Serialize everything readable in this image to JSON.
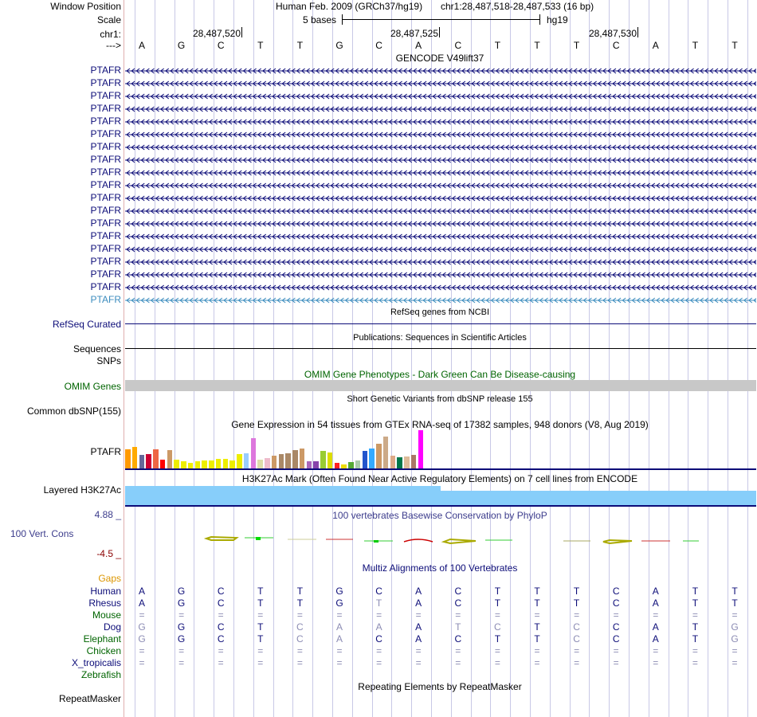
{
  "header": {
    "assembly": "Human Feb. 2009 (GRCh37/hg19)",
    "position": "chr1:28,487,518-28,487,533 (16 bp)",
    "scale_text": "5 bases",
    "scale_db": "hg19",
    "chr_label": "chr1:",
    "ticks": [
      "28,487,520",
      "28,487,525",
      "28,487,530"
    ],
    "strand_arrow": "--->"
  },
  "labels": {
    "window_position": "Window Position",
    "scale": "Scale",
    "refseq": "RefSeq Curated",
    "sequences": "Sequences",
    "snps": "SNPs",
    "omim": "OMIM Genes",
    "dbsnp": "Common dbSNP(155)",
    "gtex_gene": "PTAFR",
    "h3k27ac": "Layered H3K27Ac",
    "cons": "100 Vert. Cons",
    "cons_max": "4.88 _",
    "cons_min": "-4.5 _",
    "gaps": "Gaps",
    "repeatmasker": "RepeatMasker"
  },
  "titles": {
    "gencode": "GENCODE V49lift37",
    "refseq": "RefSeq genes from NCBI",
    "publications": "Publications: Sequences in Scientific Articles",
    "omim": "OMIM Gene Phenotypes - Dark Green Can Be Disease-causing",
    "dbsnp": "Short Genetic Variants from dbSNP release 155",
    "gtex": "Gene Expression in 54 tissues from GTEx RNA-seq of 17382 samples, 948 donors (V8, Aug 2019)",
    "h3k27ac": "H3K27Ac Mark (Often Found Near Active Regulatory Elements) on 7 cell lines from ENCODE",
    "cons": "100 vertebrates Basewise Conservation by PhyloP",
    "multiz": "Multiz Alignments of 100 Vertebrates",
    "repeatmasker": "Repeating Elements by RepeatMasker"
  },
  "bases": [
    "A",
    "G",
    "C",
    "T",
    "T",
    "G",
    "C",
    "A",
    "C",
    "T",
    "T",
    "T",
    "C",
    "A",
    "T",
    "T"
  ],
  "gencode_gene": "PTAFR",
  "gencode_count": 19,
  "colors": {
    "gene": "#0c0c78",
    "gene_last": "#3c8cbe",
    "omim_label": "#006400",
    "cons_label": "#3c3c8c",
    "gaps_label": "#dc9600",
    "h3k27ac_bar": "#87cefa",
    "omim_bar": "#c8c8c8"
  },
  "gtex_values": [
    24,
    27,
    17,
    18,
    24,
    11,
    23,
    11,
    9,
    7,
    9,
    10,
    10,
    12,
    12,
    10,
    18,
    19,
    38,
    11,
    13,
    16,
    18,
    19,
    23,
    25,
    9,
    9,
    22,
    20,
    7,
    5,
    8,
    10,
    22,
    25,
    31,
    40,
    16,
    14,
    15,
    17,
    48
  ],
  "gtex_colors": [
    "#ff9900",
    "#ffaa00",
    "#666699",
    "#cc0033",
    "#ee6644",
    "#ff0000",
    "#cc9966",
    "#eeee00",
    "#eeee00",
    "#eeee00",
    "#eeee00",
    "#eeee00",
    "#eeee00",
    "#eeee00",
    "#eeee00",
    "#eeee00",
    "#eeee00",
    "#99ccff",
    "#dd77dd",
    "#ddddaa",
    "#eebbcc",
    "#cc9966",
    "#aa8866",
    "#aa8866",
    "#aa8866",
    "#cc9966",
    "#aa66bb",
    "#8844aa",
    "#99cc33",
    "#dddd00",
    "#ff2222",
    "#eedd00",
    "#55aa33",
    "#aaccaa",
    "#2255cc",
    "#33aaff",
    "#cc9966",
    "#ccaa88",
    "#ddaa88",
    "#00774a",
    "#ddbb99",
    "#aa7766",
    "#ff00ff"
  ],
  "species": [
    {
      "name": "Human",
      "color": "#0c0c78",
      "seq": [
        "A",
        "G",
        "C",
        "T",
        "T",
        "G",
        "C",
        "A",
        "C",
        "T",
        "T",
        "T",
        "C",
        "A",
        "T",
        "T"
      ],
      "dim": [
        0,
        0,
        0,
        0,
        0,
        0,
        0,
        0,
        0,
        0,
        0,
        0,
        0,
        0,
        0,
        0
      ]
    },
    {
      "name": "Rhesus",
      "color": "#0c0c78",
      "seq": [
        "A",
        "G",
        "C",
        "T",
        "T",
        "G",
        "T",
        "A",
        "C",
        "T",
        "T",
        "T",
        "C",
        "A",
        "T",
        "T"
      ],
      "dim": [
        0,
        0,
        0,
        0,
        0,
        0,
        1,
        0,
        0,
        0,
        0,
        0,
        0,
        0,
        0,
        0
      ]
    },
    {
      "name": "Mouse",
      "color": "#006400",
      "seq": [
        "=",
        "=",
        "=",
        "=",
        "=",
        "=",
        "=",
        "=",
        "=",
        "=",
        "=",
        "=",
        "=",
        "=",
        "=",
        "="
      ],
      "dim": [
        1,
        1,
        1,
        1,
        1,
        1,
        1,
        1,
        1,
        1,
        1,
        1,
        1,
        1,
        1,
        1
      ]
    },
    {
      "name": "Dog",
      "color": "#0c0c78",
      "seq": [
        "G",
        "G",
        "C",
        "T",
        "C",
        "A",
        "A",
        "A",
        "T",
        "C",
        "T",
        "C",
        "C",
        "A",
        "T",
        "G"
      ],
      "dim": [
        1,
        0,
        0,
        0,
        1,
        1,
        1,
        0,
        1,
        1,
        0,
        1,
        0,
        0,
        0,
        1
      ]
    },
    {
      "name": "Elephant",
      "color": "#006400",
      "seq": [
        "G",
        "G",
        "C",
        "T",
        "C",
        "A",
        "C",
        "A",
        "C",
        "T",
        "T",
        "C",
        "C",
        "A",
        "T",
        "G"
      ],
      "dim": [
        1,
        0,
        0,
        0,
        1,
        1,
        0,
        0,
        0,
        0,
        0,
        1,
        0,
        0,
        0,
        1
      ]
    },
    {
      "name": "Chicken",
      "color": "#006400",
      "seq": [
        "=",
        "=",
        "=",
        "=",
        "=",
        "=",
        "=",
        "=",
        "=",
        "=",
        "=",
        "=",
        "=",
        "=",
        "=",
        "="
      ],
      "dim": [
        1,
        1,
        1,
        1,
        1,
        1,
        1,
        1,
        1,
        1,
        1,
        1,
        1,
        1,
        1,
        1
      ]
    },
    {
      "name": "X_tropicalis",
      "color": "#0c0c78",
      "seq": [
        "=",
        "=",
        "=",
        "=",
        "=",
        "=",
        "=",
        "=",
        "=",
        "=",
        "=",
        "=",
        "=",
        "=",
        "=",
        "="
      ],
      "dim": [
        1,
        1,
        1,
        1,
        1,
        1,
        1,
        1,
        1,
        1,
        1,
        1,
        1,
        1,
        1,
        1
      ]
    },
    {
      "name": "Zebrafish",
      "color": "#006400",
      "seq": [
        "",
        "",
        "",
        "",
        "",
        "",
        "",
        "",
        "",
        "",
        "",
        "",
        "",
        "",
        "",
        ""
      ],
      "dim": [
        0,
        0,
        0,
        0,
        0,
        0,
        0,
        0,
        0,
        0,
        0,
        0,
        0,
        0,
        0,
        0
      ]
    }
  ]
}
